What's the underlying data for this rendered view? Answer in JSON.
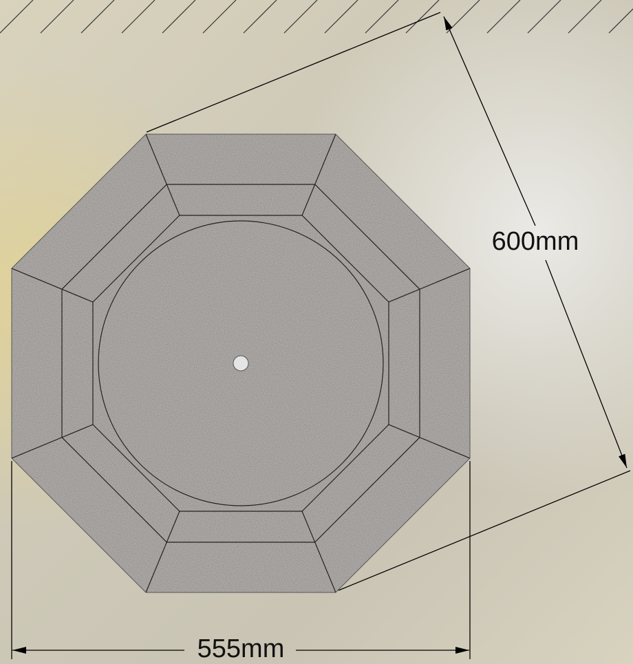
{
  "dimensions": {
    "diagonal": {
      "label": "600mm"
    },
    "width": {
      "label": "555mm"
    }
  }
}
